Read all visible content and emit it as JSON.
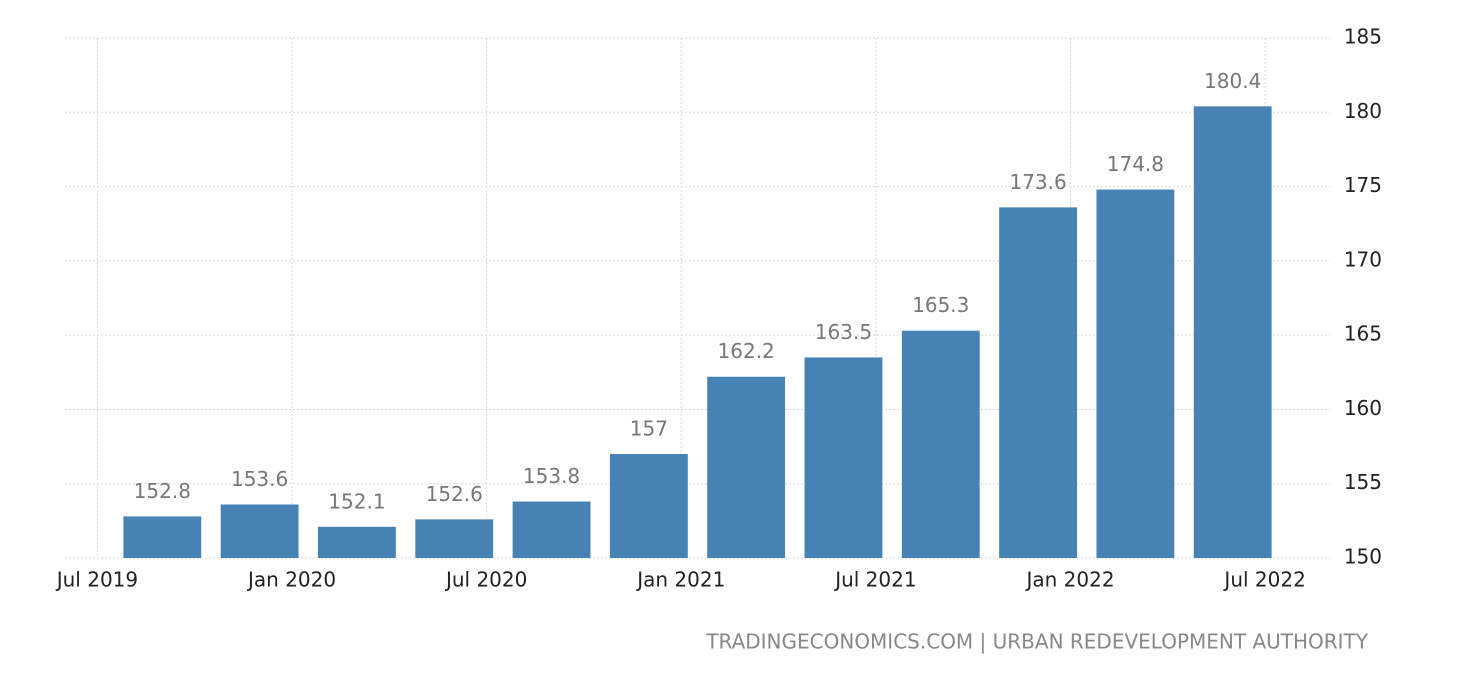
{
  "chart_data": {
    "type": "bar",
    "x": [
      "2019-09",
      "2019-12",
      "2020-03",
      "2020-06",
      "2020-09",
      "2020-12",
      "2021-03",
      "2021-06",
      "2021-09",
      "2021-12",
      "2022-03",
      "2022-06"
    ],
    "values": [
      152.8,
      153.6,
      152.1,
      152.6,
      153.8,
      157,
      162.2,
      163.5,
      165.3,
      173.6,
      174.8,
      180.4
    ],
    "color": "#4682b4",
    "xlim": [
      "2019-06",
      "2022-09"
    ],
    "xticks": [
      {
        "value": "2019-07",
        "label": "Jul 2019"
      },
      {
        "value": "2020-01",
        "label": "Jan 2020"
      },
      {
        "value": "2020-07",
        "label": "Jul 2020"
      },
      {
        "value": "2021-01",
        "label": "Jan 2021"
      },
      {
        "value": "2021-07",
        "label": "Jul 2021"
      },
      {
        "value": "2022-01",
        "label": "Jan 2022"
      },
      {
        "value": "2022-07",
        "label": "Jul 2022"
      }
    ],
    "ylim": [
      150,
      185
    ],
    "yticks": [
      150,
      155,
      160,
      165,
      170,
      175,
      180,
      185
    ],
    "grid": true,
    "source": "TRADINGECONOMICS.COM | URBAN REDEVELOPMENT AUTHORITY"
  }
}
